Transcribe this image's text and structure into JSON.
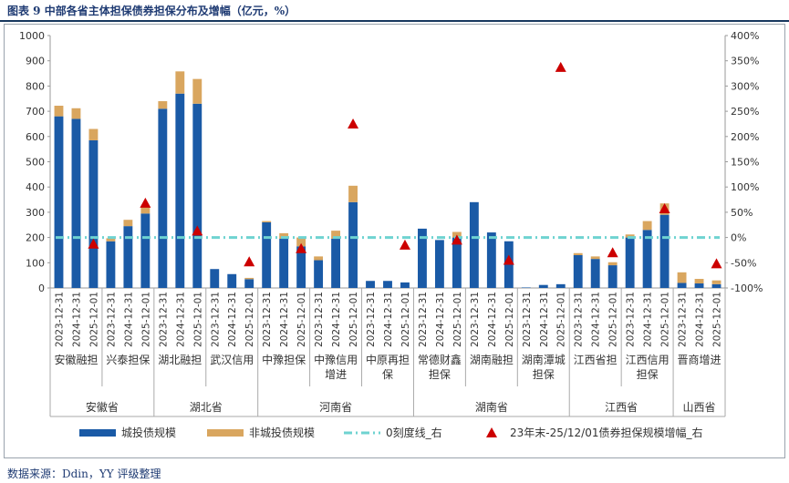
{
  "title": "图表 9 中部各省主体担保债券担保分布及增幅（亿元，%）",
  "source": "数据来源：Ddin，YY 评级整理",
  "colors": {
    "city": "#1a5aa6",
    "noncity": "#d9a65f",
    "zeroline": "#6fd3d1",
    "marker": "#cc0000"
  },
  "chart_data": {
    "type": "bar",
    "stacked": true,
    "title": "图表 9 中部各省主体担保债券担保分布及增幅（亿元，%）",
    "y_left": {
      "min": 0,
      "max": 1000,
      "step": 100,
      "ticks": [
        "0",
        "100",
        "200",
        "300",
        "400",
        "500",
        "600",
        "700",
        "800",
        "900",
        "1000"
      ]
    },
    "y_right": {
      "min": -100,
      "max": 400,
      "step": 50,
      "ticks": [
        "-100%",
        "-50%",
        "0%",
        "50%",
        "100%",
        "150%",
        "200%",
        "250%",
        "300%",
        "350%",
        "400%"
      ]
    },
    "categories": [
      "2023-12-31",
      "2024-12-31",
      "2025-12-01",
      "2023-12-31",
      "2024-12-31",
      "2025-12-01",
      "2023-12-31",
      "2024-12-31",
      "2025-12-01",
      "2023-12-31",
      "2024-12-31",
      "2025-12-01",
      "2023-12-31",
      "2024-12-31",
      "2025-12-01",
      "2023-12-31",
      "2024-12-31",
      "2025-12-01",
      "2023-12-31",
      "2024-12-31",
      "2025-12-01",
      "2023-12-31",
      "2024-12-31",
      "2025-12-01",
      "2023-12-31",
      "2024-12-31",
      "2025-12-01",
      "2023-12-31",
      "2024-12-31",
      "2025-12-01",
      "2023-12-31",
      "2024-12-31",
      "2025-12-01",
      "2023-12-31",
      "2024-12-31",
      "2025-12-01",
      "2023-12-31",
      "2024-12-31",
      "2025-12-01"
    ],
    "groups": [
      "安徽融担",
      "兴泰担保",
      "湖北融担",
      "武汉信用",
      "中豫担保",
      "中豫信用增进",
      "中原再担保",
      "常德财鑫担保",
      "湖南融担",
      "湖南潭城担保",
      "江西省担",
      "江西信用担保",
      "晋商增进"
    ],
    "group_lines": [
      [
        "安徽融担"
      ],
      [
        "兴泰担保"
      ],
      [
        "湖北融担"
      ],
      [
        "武汉信用"
      ],
      [
        "中豫担保"
      ],
      [
        "中豫信用",
        "增进"
      ],
      [
        "中原再担",
        "保"
      ],
      [
        "常德财鑫",
        "担保"
      ],
      [
        "湖南融担"
      ],
      [
        "湖南潭城",
        "担保"
      ],
      [
        "江西省担"
      ],
      [
        "江西信用",
        "担保"
      ],
      [
        "晋商增进"
      ]
    ],
    "provinces": [
      {
        "name": "安徽省",
        "groups": 2
      },
      {
        "name": "湖北省",
        "groups": 2
      },
      {
        "name": "河南省",
        "groups": 3
      },
      {
        "name": "湖南省",
        "groups": 3
      },
      {
        "name": "江西省",
        "groups": 2
      },
      {
        "name": "山西省",
        "groups": 1
      }
    ],
    "series": [
      {
        "name": "城投债规模",
        "axis": "left",
        "values": [
          680,
          670,
          585,
          185,
          245,
          295,
          710,
          770,
          730,
          75,
          55,
          35,
          260,
          195,
          165,
          110,
          195,
          340,
          28,
          28,
          22,
          235,
          190,
          200,
          340,
          220,
          185,
          2,
          12,
          15,
          130,
          115,
          90,
          200,
          230,
          290,
          20,
          18,
          15
        ]
      },
      {
        "name": "非城投债规模",
        "axis": "left",
        "values": [
          42,
          42,
          45,
          12,
          25,
          25,
          30,
          88,
          98,
          0,
          0,
          5,
          5,
          22,
          35,
          15,
          32,
          65,
          0,
          0,
          0,
          0,
          0,
          22,
          0,
          0,
          0,
          0,
          0,
          0,
          8,
          10,
          12,
          12,
          35,
          45,
          42,
          18,
          15
        ]
      },
      {
        "name": "23年末-25/12/01债券担保规模增幅_右",
        "axis": "right",
        "type": "scatter",
        "values": [
          null,
          null,
          -13,
          null,
          null,
          68,
          null,
          null,
          13,
          null,
          null,
          -48,
          null,
          null,
          -22,
          null,
          null,
          225,
          null,
          null,
          -15,
          null,
          null,
          -5,
          null,
          null,
          -45,
          null,
          null,
          337,
          null,
          null,
          -30,
          null,
          null,
          57,
          null,
          null,
          -52
        ]
      }
    ],
    "zero_line": {
      "name": "0刻度线_右",
      "value": 0,
      "axis": "right"
    },
    "legend": {
      "position": "bottom",
      "items": [
        "城投债规模",
        "非城投债规模",
        "0刻度线_右",
        "23年末-25/12/01债券担保规模增幅_右"
      ]
    }
  }
}
